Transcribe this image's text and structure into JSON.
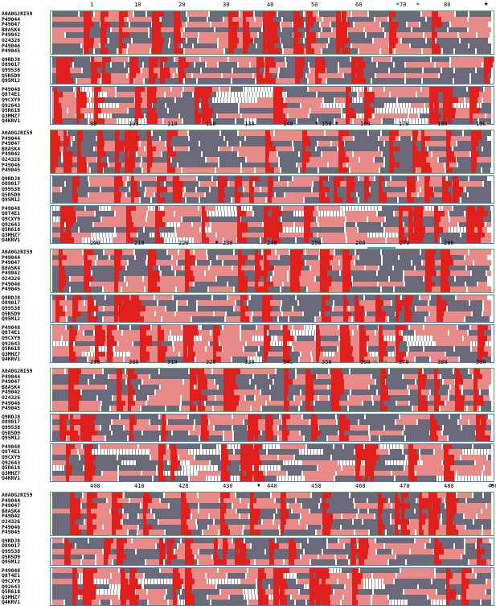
{
  "figure": {
    "sequences_group1": [
      "A0A0G2RI59",
      "P49044",
      "P49047",
      "B8ASK4",
      "P49042",
      "O24326",
      "P49046",
      "P49045"
    ],
    "sequences_group2": [
      "Q9RDJ8",
      "O89017",
      "Q99538",
      "Q5R5D9",
      "Q95M12"
    ],
    "sequences_group3": [
      "P49048",
      "Q8T4E1",
      "Q9CXY9",
      "Q92643",
      "Q5R618",
      "Q3MHZ7",
      "Q4KRV1"
    ],
    "rulers": [
      [
        "1",
        "10",
        "20",
        "30",
        "40",
        "50",
        "60",
        "70",
        "80"
      ],
      [
        "90",
        "100",
        "110",
        "120",
        "130",
        "140",
        "150",
        "160",
        "170",
        "180",
        "190"
      ],
      [
        "200",
        "210",
        "220",
        "230",
        "240",
        "250",
        "260",
        "270",
        "280"
      ],
      [
        "290",
        "300",
        "310",
        "320",
        "330",
        "340",
        "350",
        "360",
        "370",
        "380",
        "390"
      ],
      [
        "400",
        "410",
        "420",
        "430",
        "440",
        "450",
        "460",
        "470",
        "480",
        "490"
      ]
    ]
  },
  "colors": {
    "conserved": "#e0201c",
    "similar": "#e88a88",
    "box": "#3e7fc0",
    "green_star": "#2da84a",
    "orange": "#e0902a",
    "cyan": "#4a9adb"
  }
}
